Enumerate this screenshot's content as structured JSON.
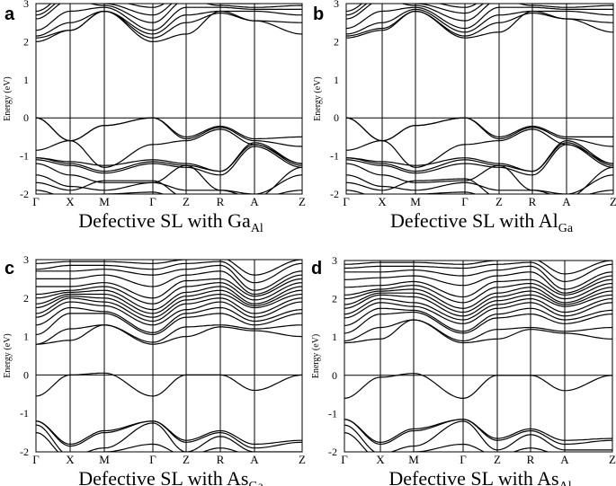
{
  "chart_data": [
    {
      "panel_label": "a",
      "type": "line",
      "caption": {
        "main": "Defective SL with Ga",
        "sub": "Al"
      },
      "ylabel": "Energy (eV)",
      "ylim": [
        -2,
        3
      ],
      "yticks": [
        "3",
        "2",
        "1",
        "0",
        "-1",
        "-2"
      ],
      "kpoints": [
        "Γ",
        "X",
        "M",
        "Γ",
        "Z",
        "R",
        "A",
        "Z"
      ],
      "fermi_level": 0,
      "bands": [
        [
          0,
          -0.6,
          -0.2,
          0,
          -0.5,
          -0.22,
          -0.55,
          -0.5
        ],
        [
          0,
          -0.6,
          -0.2,
          0,
          -0.55,
          -0.25,
          -0.6,
          -0.75
        ],
        [
          -0.85,
          -0.6,
          -1.3,
          -0.7,
          -0.6,
          -0.3,
          -0.7,
          -1.2
        ],
        [
          -1.05,
          -1.15,
          -1.25,
          -1.1,
          -1.2,
          -1.4,
          -0.65,
          -1.2
        ],
        [
          -1.05,
          -1.2,
          -1.4,
          -1.15,
          -1.25,
          -1.4,
          -0.7,
          -1.25
        ],
        [
          -1.1,
          -1.25,
          -1.45,
          -1.2,
          -1.3,
          -1.5,
          -0.75,
          -1.3
        ],
        [
          -1.2,
          -1.5,
          -1.7,
          -1.7,
          -1.25,
          -1.9,
          -2,
          -1.5
        ],
        [
          -1.5,
          -1.8,
          -1.9,
          -1.7,
          -1.9,
          -1.9,
          -2.1,
          -1.3
        ],
        [
          -1.7,
          -1.9,
          -1.65,
          -1.65,
          -2.1,
          -2.1,
          -2.1,
          -1.9
        ],
        [
          -1.9,
          -2.1,
          -2,
          -1.95,
          -2.2,
          -2.1,
          -2.2,
          -2.1
        ],
        [
          2.0,
          2.3,
          2.8,
          2.0,
          2.2,
          2.8,
          2.55,
          2.2
        ],
        [
          2.1,
          2.3,
          2.8,
          2.1,
          2.5,
          2.75,
          2.55,
          2.5
        ],
        [
          2.15,
          2.5,
          2.8,
          2.2,
          2.7,
          2.8,
          2.8,
          2.7
        ],
        [
          2.3,
          2.8,
          2.9,
          2.3,
          2.9,
          2.9,
          2.85,
          2.85
        ],
        [
          2.6,
          3.1,
          2.95,
          2.5,
          3.1,
          2.95,
          2.9,
          2.95
        ],
        [
          2.7,
          3.2,
          3.0,
          2.7,
          3.2,
          3.0,
          3.0,
          3.05
        ],
        [
          2.8,
          3.3,
          3.1,
          2.9,
          3.3,
          3.1,
          3.1,
          3.1
        ]
      ]
    },
    {
      "panel_label": "b",
      "type": "line",
      "caption": {
        "main": "Defective SL with Al",
        "sub": "Ga"
      },
      "ylabel": "Energy (eV)",
      "ylim": [
        -2,
        3
      ],
      "yticks": [
        "3",
        "2",
        "1",
        "0",
        "-1",
        "-2"
      ],
      "kpoints": [
        "Γ",
        "X",
        "M",
        "Γ",
        "Z",
        "R",
        "A",
        "Z"
      ],
      "fermi_level": 0,
      "bands": [
        [
          0,
          -0.6,
          -0.2,
          0,
          -0.5,
          -0.22,
          -0.5,
          -0.5
        ],
        [
          0,
          -0.6,
          -0.2,
          0,
          -0.55,
          -0.25,
          -0.55,
          -0.75
        ],
        [
          -0.85,
          -0.6,
          -1.3,
          -0.7,
          -0.6,
          -0.3,
          -0.7,
          -1.2
        ],
        [
          -1.05,
          -1.15,
          -1.25,
          -1.05,
          -1.2,
          -1.4,
          -0.6,
          -1.2
        ],
        [
          -1.05,
          -1.2,
          -1.4,
          -1.1,
          -1.25,
          -1.4,
          -0.65,
          -1.25
        ],
        [
          -1.1,
          -1.25,
          -1.45,
          -1.2,
          -1.3,
          -1.5,
          -0.7,
          -1.3
        ],
        [
          -1.2,
          -1.5,
          -1.7,
          -1.65,
          -1.25,
          -1.9,
          -2,
          -1.5
        ],
        [
          -1.5,
          -1.8,
          -1.9,
          -1.7,
          -1.9,
          -1.9,
          -2.1,
          -1.3
        ],
        [
          -1.7,
          -1.9,
          -1.65,
          -1.6,
          -2.1,
          -2.1,
          -2.1,
          -1.9
        ],
        [
          -1.9,
          -2.1,
          -2,
          -1.95,
          -2.2,
          -2.1,
          -2.2,
          -2.1
        ],
        [
          2.1,
          2.3,
          2.8,
          2.1,
          2.25,
          2.8,
          2.6,
          2.25
        ],
        [
          2.15,
          2.35,
          2.8,
          2.15,
          2.5,
          2.75,
          2.6,
          2.5
        ],
        [
          2.2,
          2.5,
          2.85,
          2.25,
          2.7,
          2.8,
          2.8,
          2.7
        ],
        [
          2.35,
          2.8,
          2.9,
          2.35,
          2.9,
          2.9,
          2.85,
          2.85
        ],
        [
          2.6,
          3.1,
          2.95,
          2.55,
          3.1,
          2.95,
          2.9,
          2.95
        ],
        [
          2.7,
          3.2,
          3.0,
          2.75,
          3.2,
          3.0,
          3.0,
          3.05
        ],
        [
          2.8,
          3.3,
          3.1,
          2.9,
          3.3,
          3.1,
          3.1,
          3.1
        ]
      ]
    },
    {
      "panel_label": "c",
      "type": "line",
      "caption": {
        "main": "Defective SL with As",
        "sub": "Ga"
      },
      "ylabel": "Energy (eV)",
      "ylim": [
        -2,
        3
      ],
      "yticks": [
        "3",
        "2",
        "1",
        "0",
        "-1",
        "-2"
      ],
      "kpoints": [
        "Γ",
        "X",
        "M",
        "Γ",
        "Z",
        "R",
        "A",
        "Z"
      ],
      "fermi_level": 0,
      "bands": [
        [
          -1.2,
          -1.8,
          -1.45,
          -1.2,
          -1.7,
          -1.45,
          -1.8,
          -1.7
        ],
        [
          -1.2,
          -1.85,
          -1.5,
          -1.2,
          -1.75,
          -1.5,
          -1.9,
          -1.75
        ],
        [
          -1.3,
          -2.1,
          -1.9,
          -1.25,
          -2.0,
          -1.6,
          -2.0,
          -2.0
        ],
        [
          -1.5,
          -2.2,
          -2.0,
          -1.8,
          -2.1,
          -1.9,
          -2.1,
          -2.1
        ],
        [
          -0.55,
          0,
          0.05,
          -0.55,
          0,
          0,
          -0.4,
          0
        ],
        [
          0.8,
          0.9,
          1.3,
          0.8,
          1.0,
          1.25,
          1.15,
          1.0
        ],
        [
          0.8,
          1.2,
          1.3,
          0.85,
          1.25,
          1.3,
          1.2,
          1.3
        ],
        [
          1.05,
          1.6,
          1.6,
          1.05,
          1.5,
          1.6,
          1.3,
          1.6
        ],
        [
          1.3,
          1.75,
          1.65,
          1.1,
          1.6,
          1.75,
          1.4,
          1.7
        ],
        [
          1.5,
          1.9,
          1.8,
          1.3,
          1.7,
          1.9,
          1.5,
          1.9
        ],
        [
          1.6,
          2.0,
          1.9,
          1.4,
          1.85,
          2.0,
          1.6,
          2.0
        ],
        [
          1.75,
          2.05,
          2.0,
          1.5,
          1.95,
          2.1,
          1.75,
          2.1
        ],
        [
          1.85,
          2.1,
          2.1,
          1.6,
          2.05,
          2.2,
          1.8,
          2.2
        ],
        [
          2.0,
          2.15,
          2.2,
          1.7,
          2.15,
          2.3,
          1.85,
          2.3
        ],
        [
          2.1,
          2.2,
          2.3,
          1.85,
          2.3,
          2.4,
          1.95,
          2.4
        ],
        [
          2.3,
          2.3,
          2.4,
          2.0,
          2.45,
          2.5,
          2.05,
          2.5
        ],
        [
          2.5,
          2.5,
          2.6,
          2.3,
          2.6,
          2.7,
          2.1,
          2.6
        ],
        [
          2.7,
          2.7,
          2.75,
          2.6,
          2.75,
          2.85,
          2.2,
          2.7
        ],
        [
          2.75,
          2.85,
          2.85,
          2.75,
          2.9,
          2.95,
          2.4,
          2.9
        ],
        [
          2.9,
          2.95,
          2.95,
          2.9,
          3.0,
          3.05,
          2.6,
          3.0
        ]
      ]
    },
    {
      "panel_label": "d",
      "type": "line",
      "caption": {
        "main": "Defective SL with As",
        "sub": "Al"
      },
      "ylabel": "Energy (eV)",
      "ylim": [
        -2,
        3
      ],
      "yticks": [
        "3",
        "2",
        "1",
        "0",
        "-1",
        "-2"
      ],
      "kpoints": [
        "Γ",
        "X",
        "M",
        "Γ",
        "Z",
        "R",
        "A",
        "Z"
      ],
      "fermi_level": 0,
      "bands": [
        [
          -1.15,
          -1.75,
          -1.4,
          -1.15,
          -1.65,
          -1.4,
          -1.7,
          -1.65
        ],
        [
          -1.15,
          -1.8,
          -1.45,
          -1.15,
          -1.7,
          -1.45,
          -1.8,
          -1.7
        ],
        [
          -1.3,
          -2.05,
          -1.85,
          -1.2,
          -1.95,
          -1.55,
          -1.95,
          -1.95
        ],
        [
          -1.5,
          -2.2,
          -2.0,
          -1.8,
          -2.1,
          -1.9,
          -2.1,
          -2.1
        ],
        [
          -0.6,
          -0.05,
          0.05,
          -0.6,
          0,
          0,
          -0.4,
          0
        ],
        [
          0.85,
          0.95,
          1.45,
          0.85,
          0.95,
          1.2,
          1.1,
          0.95
        ],
        [
          0.9,
          1.25,
          1.45,
          0.9,
          1.2,
          1.25,
          1.15,
          1.25
        ],
        [
          1.1,
          1.6,
          1.65,
          1.1,
          1.5,
          1.6,
          1.35,
          1.6
        ],
        [
          1.3,
          1.75,
          1.7,
          1.15,
          1.6,
          1.75,
          1.45,
          1.7
        ],
        [
          1.5,
          1.9,
          1.8,
          1.35,
          1.75,
          1.9,
          1.55,
          1.9
        ],
        [
          1.6,
          2.0,
          1.9,
          1.45,
          1.85,
          2.0,
          1.65,
          2.0
        ],
        [
          1.75,
          2.1,
          2.05,
          1.55,
          1.95,
          2.1,
          1.8,
          2.1
        ],
        [
          1.85,
          2.15,
          2.15,
          1.65,
          2.05,
          2.2,
          1.85,
          2.2
        ],
        [
          2.0,
          2.2,
          2.25,
          1.75,
          2.15,
          2.3,
          1.9,
          2.3
        ],
        [
          2.1,
          2.25,
          2.35,
          1.9,
          2.3,
          2.4,
          2.0,
          2.4
        ],
        [
          2.3,
          2.35,
          2.45,
          2.05,
          2.45,
          2.5,
          2.1,
          2.5
        ],
        [
          2.5,
          2.55,
          2.6,
          2.35,
          2.6,
          2.7,
          2.15,
          2.6
        ],
        [
          2.7,
          2.7,
          2.75,
          2.6,
          2.75,
          2.85,
          2.25,
          2.7
        ],
        [
          2.8,
          2.85,
          2.85,
          2.8,
          2.9,
          2.95,
          2.45,
          2.9
        ],
        [
          2.9,
          2.95,
          2.95,
          2.9,
          3.0,
          3.05,
          2.65,
          3.0
        ]
      ]
    }
  ]
}
